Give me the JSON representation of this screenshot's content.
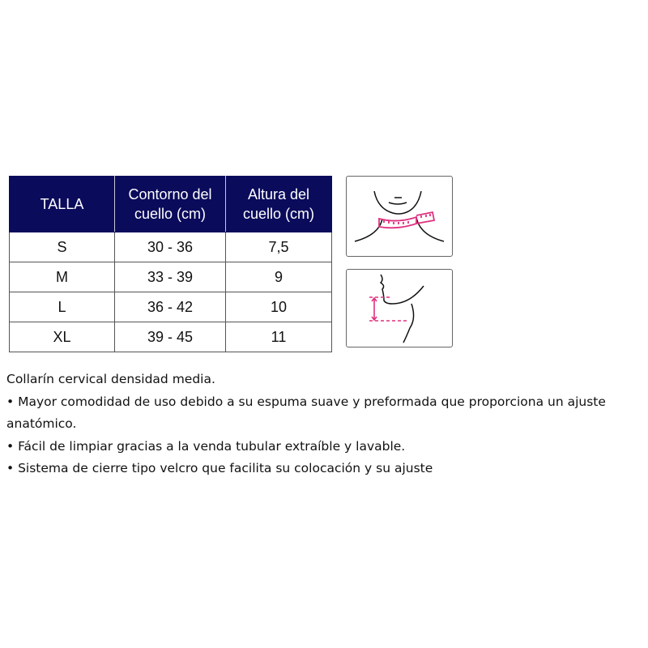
{
  "table": {
    "headers": [
      "TALLA",
      "Contorno del\ncuello (cm)",
      "Altura del\ncuello (cm)"
    ],
    "rows": [
      [
        "S",
        "30 - 36",
        "7,5"
      ],
      [
        "M",
        "33 - 39",
        "9"
      ],
      [
        "L",
        "36 - 42",
        "10"
      ],
      [
        "XL",
        "39 - 45",
        "11"
      ]
    ]
  },
  "illustrations": {
    "accent": "#e0307f",
    "front": "neck-circumference-measure-icon",
    "side": "neck-height-measure-icon"
  },
  "description": {
    "lines": [
      "Collarín cervical densidad media.",
      "• Mayor comodidad de uso debido a su espuma suave y preformada que proporciona un ajuste anatómico.",
      "• Fácil de limpiar gracias a la venda tubular extraíble y lavable.",
      "• Sistema de cierre tipo velcro que facilita su colocación y su ajuste"
    ]
  }
}
